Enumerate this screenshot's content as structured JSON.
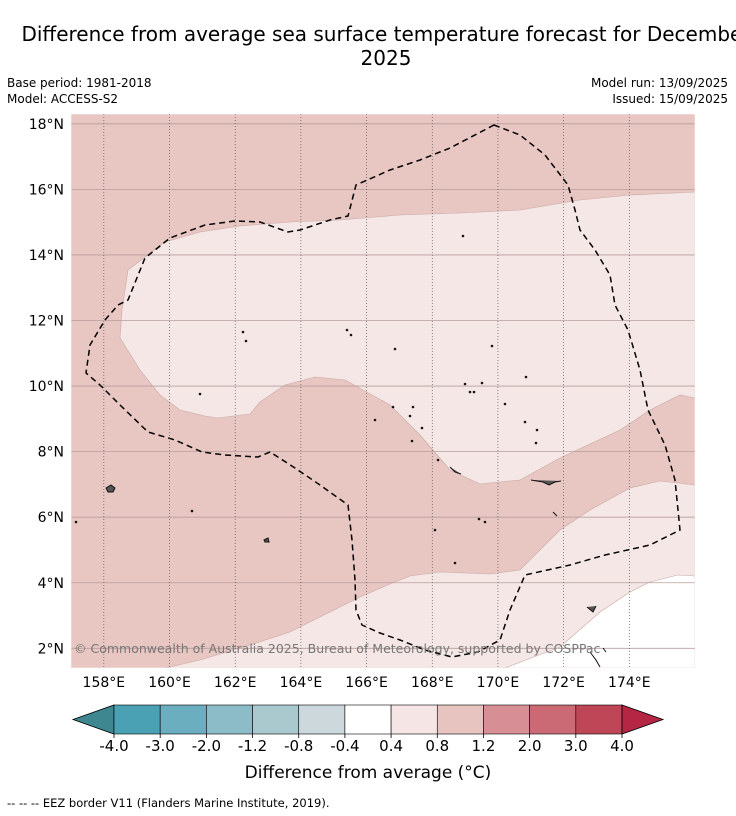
{
  "title": "Difference from average sea surface temperature forecast for December 2025",
  "base_period": "Base period: 1981-2018",
  "model": "Model: ACCESS-S2",
  "model_run": "Model run: 13/09/2025",
  "issued": "Issued: 15/09/2025",
  "copyright": "© Commonwealth of Australia 2025, Bureau of Meteorology, supported by COSPPac",
  "lat_labels": [
    {
      "value": 18,
      "label": "18°N"
    },
    {
      "value": 16,
      "label": "16°N"
    },
    {
      "value": 14,
      "label": "14°N"
    },
    {
      "value": 12,
      "label": "12°N"
    },
    {
      "value": 10,
      "label": "10°N"
    },
    {
      "value": 8,
      "label": "8°N"
    },
    {
      "value": 6,
      "label": "6°N"
    },
    {
      "value": 4,
      "label": "4°N"
    },
    {
      "value": 2,
      "label": "2°N"
    }
  ],
  "lon_labels": [
    {
      "value": 158,
      "label": "158°E"
    },
    {
      "value": 160,
      "label": "160°E"
    },
    {
      "value": 162,
      "label": "162°E"
    },
    {
      "value": 164,
      "label": "164°E"
    },
    {
      "value": 166,
      "label": "166°E"
    },
    {
      "value": 168,
      "label": "168°E"
    },
    {
      "value": 170,
      "label": "170°E"
    },
    {
      "value": 172,
      "label": "172°E"
    },
    {
      "value": 174,
      "label": "174°E"
    }
  ],
  "colorbar": {
    "title": "Difference from average (°C)",
    "tick_labels": [
      "-4.0",
      "-3.0",
      "-2.0",
      "-1.2",
      "-0.8",
      "-0.4",
      "0.4",
      "0.8",
      "1.2",
      "2.0",
      "3.0",
      "4.0"
    ],
    "colors": [
      "#4aa1b4",
      "#6aaebf",
      "#8cbcc8",
      "#a9c9ce",
      "#ccd8db",
      "#ffffff",
      "#f5e6e5",
      "#e8c4c0",
      "#d88e95",
      "#cb6a74",
      "#bf4657"
    ],
    "under_color": "#3f8790",
    "over_color": "#b52645"
  },
  "map": {
    "lon_range": [
      157,
      176
    ],
    "lat_range": [
      1.4,
      18.3
    ],
    "band_colors": {
      "0.8-1.2": "#e8c6c2",
      "0.4-0.8": "#f5e7e6",
      "-0.4-0.4": "#ffffff"
    }
  },
  "legend_note": "--  --  -- EEZ border V11 (Flanders Marine Institute, 2019)."
}
